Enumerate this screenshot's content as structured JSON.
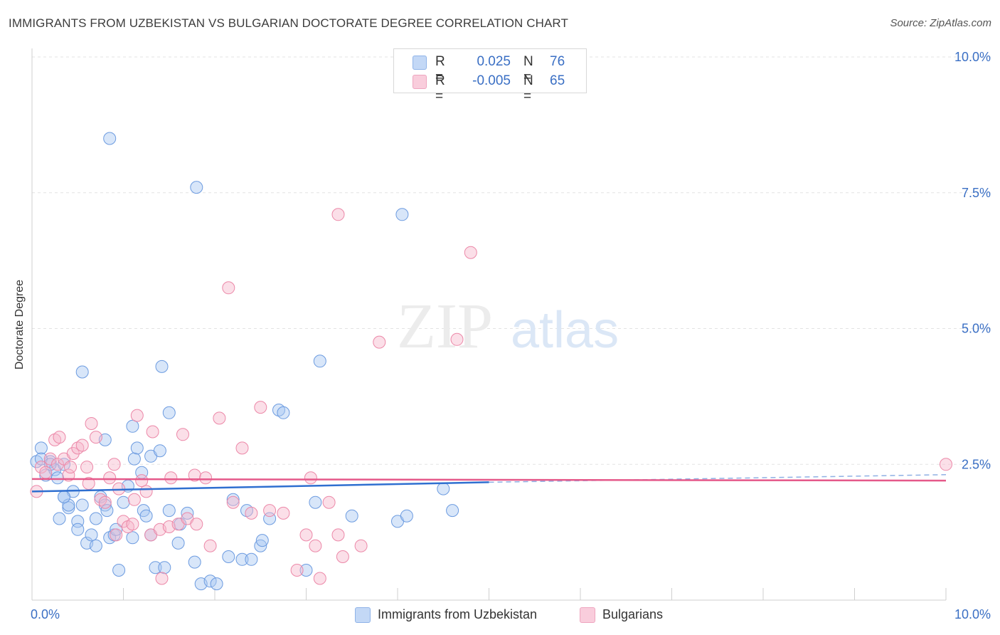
{
  "header": {
    "title": "IMMIGRANTS FROM UZBEKISTAN VS BULGARIAN DOCTORATE DEGREE CORRELATION CHART",
    "source": "Source: ZipAtlas.com"
  },
  "watermark": {
    "zip": "ZIP",
    "atlas": "atlas"
  },
  "legend": {
    "r_label": "R =",
    "n_label": "N =",
    "rows": [
      {
        "r": "0.025",
        "n": "76",
        "color": "#a9c8f2"
      },
      {
        "r": "-0.005",
        "n": "65",
        "color": "#f6b9cd"
      }
    ]
  },
  "colors": {
    "blue_fill": "#a9c8f2",
    "blue_stroke": "#6c9be0",
    "blue_line": "#2f6fd0",
    "pink_fill": "#f6b9cd",
    "pink_stroke": "#ec88a8",
    "pink_line": "#e5598a",
    "tick_label": "#3a6fc4"
  },
  "chart_data": {
    "type": "scatter",
    "title": "IMMIGRANTS FROM UZBEKISTAN VS BULGARIAN DOCTORATE DEGREE CORRELATION CHART",
    "xlabel": "",
    "ylabel": "Doctorate Degree",
    "xlim": [
      0,
      10
    ],
    "ylim": [
      0,
      10.4
    ],
    "x_tick_labels": [
      {
        "value": 0,
        "label": "0.0%"
      },
      {
        "value": 10,
        "label": "10.0%"
      }
    ],
    "y_tick_labels": [
      {
        "value": 2.5,
        "label": "2.5%"
      },
      {
        "value": 5,
        "label": "5.0%"
      },
      {
        "value": 7.5,
        "label": "7.5%"
      },
      {
        "value": 10,
        "label": "10.0%"
      }
    ],
    "grid": true,
    "series": [
      {
        "name": "Immigrants from Uzbekistan",
        "r": 0.025,
        "n": 76,
        "trend": {
          "x": [
            0,
            5
          ],
          "y": [
            2.0,
            2.17
          ],
          "dashed_to": [
            10,
            2.31
          ]
        },
        "points": [
          [
            0.05,
            2.55
          ],
          [
            0.1,
            2.8
          ],
          [
            0.15,
            2.3
          ],
          [
            0.2,
            2.55
          ],
          [
            0.25,
            2.4
          ],
          [
            0.28,
            2.25
          ],
          [
            0.3,
            1.5
          ],
          [
            0.35,
            1.9
          ],
          [
            0.4,
            1.7
          ],
          [
            0.35,
            2.5
          ],
          [
            0.4,
            1.75
          ],
          [
            0.45,
            2.0
          ],
          [
            0.5,
            1.45
          ],
          [
            0.5,
            1.3
          ],
          [
            0.55,
            1.75
          ],
          [
            0.6,
            1.05
          ],
          [
            0.65,
            1.2
          ],
          [
            0.7,
            1.0
          ],
          [
            0.7,
            1.5
          ],
          [
            0.75,
            1.9
          ],
          [
            0.8,
            1.75
          ],
          [
            0.82,
            1.65
          ],
          [
            0.85,
            1.15
          ],
          [
            0.9,
            1.2
          ],
          [
            0.92,
            1.3
          ],
          [
            0.95,
            0.55
          ],
          [
            1.0,
            1.8
          ],
          [
            1.05,
            2.1
          ],
          [
            1.1,
            1.15
          ],
          [
            1.1,
            3.2
          ],
          [
            1.12,
            2.6
          ],
          [
            1.15,
            2.8
          ],
          [
            1.2,
            2.35
          ],
          [
            1.22,
            1.65
          ],
          [
            1.25,
            1.55
          ],
          [
            1.3,
            1.2
          ],
          [
            1.3,
            2.65
          ],
          [
            1.35,
            0.6
          ],
          [
            1.4,
            2.75
          ],
          [
            1.42,
            4.3
          ],
          [
            1.45,
            0.6
          ],
          [
            1.5,
            1.65
          ],
          [
            1.5,
            3.45
          ],
          [
            1.6,
            1.05
          ],
          [
            1.62,
            1.4
          ],
          [
            1.7,
            1.6
          ],
          [
            1.78,
            0.7
          ],
          [
            1.85,
            0.3
          ],
          [
            1.95,
            0.35
          ],
          [
            2.02,
            0.3
          ],
          [
            2.15,
            0.8
          ],
          [
            2.2,
            1.85
          ],
          [
            2.3,
            0.75
          ],
          [
            2.35,
            1.65
          ],
          [
            2.4,
            0.75
          ],
          [
            2.5,
            1.0
          ],
          [
            2.52,
            1.1
          ],
          [
            2.6,
            1.5
          ],
          [
            2.7,
            3.5
          ],
          [
            2.75,
            3.45
          ],
          [
            3.0,
            0.55
          ],
          [
            3.1,
            1.8
          ],
          [
            3.15,
            4.4
          ],
          [
            3.5,
            1.55
          ],
          [
            4.0,
            1.45
          ],
          [
            4.05,
            7.1
          ],
          [
            4.1,
            1.55
          ],
          [
            4.5,
            2.05
          ],
          [
            4.6,
            1.65
          ],
          [
            0.85,
            8.5
          ],
          [
            1.8,
            7.6
          ],
          [
            0.55,
            4.2
          ],
          [
            0.8,
            2.95
          ],
          [
            0.1,
            2.6
          ],
          [
            0.35,
            1.9
          ],
          [
            0.2,
            2.5
          ]
        ]
      },
      {
        "name": "Bulgarians",
        "r": -0.005,
        "n": 65,
        "trend": {
          "x": [
            0,
            10
          ],
          "y": [
            2.23,
            2.2
          ]
        },
        "points": [
          [
            0.05,
            2.0
          ],
          [
            0.1,
            2.45
          ],
          [
            0.15,
            2.35
          ],
          [
            0.2,
            2.6
          ],
          [
            0.25,
            2.95
          ],
          [
            0.28,
            2.5
          ],
          [
            0.3,
            3.0
          ],
          [
            0.35,
            2.6
          ],
          [
            0.4,
            2.3
          ],
          [
            0.42,
            2.45
          ],
          [
            0.45,
            2.7
          ],
          [
            0.5,
            2.8
          ],
          [
            0.55,
            2.85
          ],
          [
            0.6,
            2.45
          ],
          [
            0.62,
            2.15
          ],
          [
            0.65,
            3.25
          ],
          [
            0.7,
            3.0
          ],
          [
            0.75,
            1.85
          ],
          [
            0.8,
            1.8
          ],
          [
            0.85,
            2.25
          ],
          [
            0.9,
            2.5
          ],
          [
            0.92,
            1.2
          ],
          [
            0.95,
            2.05
          ],
          [
            1.0,
            1.45
          ],
          [
            1.05,
            1.35
          ],
          [
            1.1,
            1.4
          ],
          [
            1.12,
            1.85
          ],
          [
            1.15,
            3.4
          ],
          [
            1.2,
            2.2
          ],
          [
            1.25,
            2.0
          ],
          [
            1.3,
            1.2
          ],
          [
            1.32,
            3.1
          ],
          [
            1.4,
            1.3
          ],
          [
            1.42,
            0.4
          ],
          [
            1.5,
            1.35
          ],
          [
            1.52,
            2.25
          ],
          [
            1.6,
            1.4
          ],
          [
            1.65,
            3.05
          ],
          [
            1.7,
            1.5
          ],
          [
            1.78,
            2.3
          ],
          [
            1.8,
            1.4
          ],
          [
            1.9,
            2.25
          ],
          [
            1.95,
            1.0
          ],
          [
            2.05,
            3.35
          ],
          [
            2.15,
            5.75
          ],
          [
            2.2,
            1.8
          ],
          [
            2.3,
            2.8
          ],
          [
            2.4,
            1.6
          ],
          [
            2.5,
            3.55
          ],
          [
            2.6,
            1.65
          ],
          [
            2.75,
            1.6
          ],
          [
            2.9,
            0.55
          ],
          [
            3.0,
            1.2
          ],
          [
            3.05,
            2.25
          ],
          [
            3.1,
            1.0
          ],
          [
            3.15,
            0.4
          ],
          [
            3.25,
            1.8
          ],
          [
            3.35,
            1.2
          ],
          [
            3.4,
            0.8
          ],
          [
            3.6,
            1.0
          ],
          [
            3.8,
            4.75
          ],
          [
            4.65,
            4.8
          ],
          [
            4.8,
            6.4
          ],
          [
            3.35,
            7.1
          ],
          [
            10.0,
            2.5
          ]
        ]
      }
    ]
  }
}
